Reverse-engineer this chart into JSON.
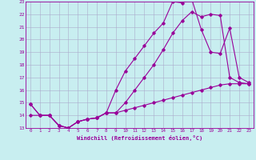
{
  "title": "",
  "xlabel": "Windchill (Refroidissement éolien,°C)",
  "ylabel": "",
  "background_color": "#c8eef0",
  "line_color": "#990099",
  "grid_color": "#aadddd",
  "xlim": [
    -0.5,
    23.5
  ],
  "ylim": [
    13,
    23
  ],
  "xticks": [
    0,
    1,
    2,
    3,
    4,
    5,
    6,
    7,
    8,
    9,
    10,
    11,
    12,
    13,
    14,
    15,
    16,
    17,
    18,
    19,
    20,
    21,
    22,
    23
  ],
  "yticks": [
    13,
    14,
    15,
    16,
    17,
    18,
    19,
    20,
    21,
    22,
    23
  ],
  "line1_x": [
    0,
    1,
    2,
    3,
    4,
    5,
    6,
    7,
    8,
    9,
    10,
    11,
    12,
    13,
    14,
    15,
    16,
    17,
    18,
    19,
    20,
    21,
    22,
    23
  ],
  "line1_y": [
    14.9,
    14.0,
    14.0,
    13.2,
    13.0,
    13.5,
    13.7,
    13.8,
    14.2,
    14.2,
    15.0,
    16.0,
    17.0,
    18.0,
    19.2,
    20.5,
    21.5,
    22.2,
    21.8,
    22.0,
    21.9,
    17.0,
    16.6,
    16.5
  ],
  "line2_x": [
    0,
    1,
    2,
    3,
    4,
    5,
    6,
    7,
    8,
    9,
    10,
    11,
    12,
    13,
    14,
    15,
    16,
    17,
    18,
    19,
    20,
    21,
    22,
    23
  ],
  "line2_y": [
    14.0,
    14.0,
    14.0,
    13.2,
    13.0,
    13.5,
    13.7,
    13.8,
    14.2,
    14.2,
    14.4,
    14.6,
    14.8,
    15.0,
    15.2,
    15.4,
    15.6,
    15.8,
    16.0,
    16.2,
    16.4,
    16.5,
    16.5,
    16.5
  ],
  "line3_x": [
    0,
    1,
    2,
    3,
    4,
    5,
    6,
    7,
    8,
    9,
    10,
    11,
    12,
    13,
    14,
    15,
    16,
    17,
    18,
    19,
    20,
    21,
    22,
    23
  ],
  "line3_y": [
    14.9,
    14.0,
    14.0,
    13.2,
    13.0,
    13.5,
    13.7,
    13.8,
    14.2,
    16.0,
    17.5,
    18.5,
    19.5,
    20.5,
    21.3,
    23.0,
    22.9,
    23.2,
    20.8,
    19.0,
    18.9,
    20.9,
    17.0,
    16.6
  ]
}
